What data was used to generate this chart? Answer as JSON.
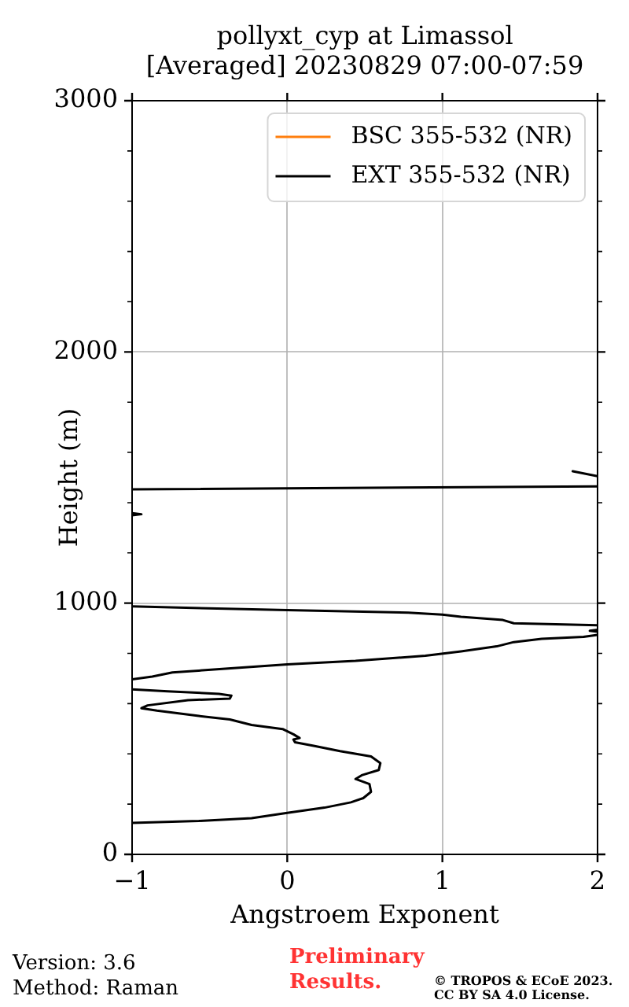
{
  "chart_data": {
    "type": "line",
    "title": "pollyxt_cyp at Limassol",
    "subtitle": "[Averaged] 20230829 07:00-07:59",
    "xlabel": "Angstroem Exponent",
    "ylabel": "Height (m)",
    "xlim": [
      -1,
      2
    ],
    "xticks": [
      -1,
      0,
      1,
      2
    ],
    "ylim": [
      0,
      3000
    ],
    "yticks": [
      0,
      {
        "value": 200,
        "label": null
      },
      {
        "value": 400,
        "label": null
      },
      {
        "value": 600,
        "label": null
      },
      {
        "value": 800,
        "label": null
      },
      1000,
      {
        "value": 1200,
        "label": null
      },
      {
        "value": 1400,
        "label": null
      },
      {
        "value": 1600,
        "label": null
      },
      {
        "value": 1800,
        "label": null
      },
      2000,
      {
        "value": 2200,
        "label": null
      },
      {
        "value": 2400,
        "label": null
      },
      {
        "value": 2600,
        "label": null
      },
      {
        "value": 2800,
        "label": null
      },
      3000
    ],
    "grid": true,
    "legend": "top right",
    "marker": "none",
    "line_style": "solid",
    "series": [
      {
        "name": "BSC 355-532 (NR)",
        "color": "#ff7f0e"
      },
      {
        "name": "EXT 355-532 (NR)",
        "color": "#000000",
        "x": [
          -1.0,
          -0.57,
          -0.23,
          0.0,
          0.24,
          0.41,
          0.49,
          0.54,
          0.53,
          0.44,
          0.48,
          0.59,
          0.6,
          0.54,
          0.34,
          0.17,
          0.05,
          0.04,
          0.08,
          0.04,
          -0.03,
          -0.23,
          -0.37,
          -0.57,
          -0.84,
          -0.94,
          -0.9,
          -0.64,
          -0.37,
          -0.36,
          -0.44,
          -0.77,
          -1.0,
          null,
          -1.0,
          -0.87,
          -0.74,
          -0.4,
          0.0,
          0.44,
          0.89,
          1.12,
          1.35,
          1.46,
          1.64,
          1.91,
          2.0,
          null,
          2.0,
          1.95,
          2.0,
          null,
          2.0,
          1.46,
          1.39,
          1.12,
          1.0,
          0.78,
          0.0,
          -1.0,
          null,
          -1.0,
          -0.94,
          -1.0,
          null,
          -1.0,
          2.0,
          null,
          1.84,
          2.0
        ],
        "values": [
          125,
          133,
          144,
          165,
          186,
          207,
          224,
          249,
          280,
          300,
          315,
          336,
          363,
          390,
          411,
          432,
          446,
          457,
          463,
          478,
          499,
          515,
          537,
          551,
          572,
          582,
          593,
          614,
          620,
          632,
          639,
          649,
          657,
          null,
          697,
          708,
          724,
          739,
          756,
          770,
          791,
          808,
          828,
          845,
          858,
          866,
          874,
          null,
          886,
          890,
          894,
          null,
          912,
          920,
          933,
          946,
          954,
          962,
          972,
          987,
          null,
          1350,
          1354,
          1358,
          null,
          1453,
          1465,
          null,
          1525,
          1505
        ]
      }
    ],
    "annotations": [
      "Version: 3.6",
      "Method: Raman",
      "Preliminary Results.",
      "© TROPOS & ECoE 2023.",
      "CC BY SA 4.0 License."
    ]
  }
}
